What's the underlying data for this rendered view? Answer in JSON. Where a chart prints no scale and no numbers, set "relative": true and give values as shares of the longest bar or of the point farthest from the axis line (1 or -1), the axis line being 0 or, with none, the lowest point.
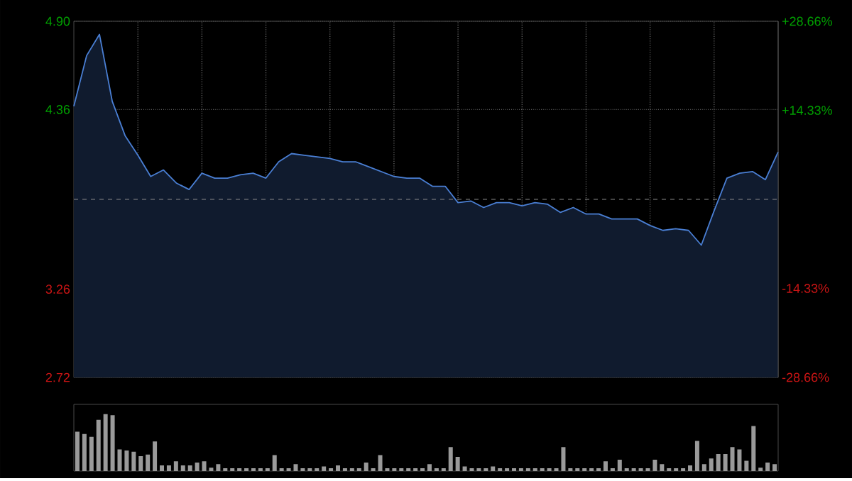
{
  "chart_data": [
    {
      "type": "area",
      "color": "#4a7fd4",
      "categories": [
        null,
        null,
        null,
        null,
        null,
        null,
        null,
        null,
        null,
        null,
        null,
        null,
        null,
        null,
        null,
        null,
        null,
        null,
        null,
        null,
        null,
        null,
        null,
        null,
        null,
        null,
        null,
        null,
        null,
        null,
        null,
        null,
        null,
        null,
        null,
        null,
        null,
        null,
        null,
        null,
        null,
        null,
        null,
        null,
        null,
        null,
        null,
        null,
        null,
        null,
        null,
        null,
        null,
        null,
        null,
        null
      ],
      "values": [
        4.38,
        4.69,
        4.82,
        4.41,
        4.2,
        4.08,
        3.95,
        3.99,
        3.91,
        3.87,
        3.97,
        3.94,
        3.94,
        3.96,
        3.97,
        3.94,
        4.04,
        4.09,
        4.08,
        4.07,
        4.06,
        4.04,
        4.04,
        4.01,
        3.98,
        3.95,
        3.94,
        3.94,
        3.89,
        3.89,
        3.79,
        3.8,
        3.76,
        3.79,
        3.79,
        3.77,
        3.79,
        3.78,
        3.73,
        3.76,
        3.72,
        3.72,
        3.69,
        3.69,
        3.69,
        3.65,
        3.62,
        3.63,
        3.62,
        3.53,
        3.74,
        3.94,
        3.97,
        3.98,
        3.93,
        4.1
      ],
      "ylim": [
        2.72,
        4.9
      ],
      "yticks": [
        {
          "value": 2.72,
          "label": "2.72"
        },
        {
          "value": 3.26,
          "label": "3.26"
        },
        {
          "value": 4.36,
          "label": "4.36"
        },
        {
          "value": 4.9,
          "label": "4.90"
        }
      ],
      "y2lim": [
        -28.66,
        28.66
      ],
      "y2ticks": [
        {
          "value": -28.66,
          "label": "-28.66%"
        },
        {
          "value": -14.33,
          "label": "-14.33%"
        },
        {
          "value": 14.33,
          "label": "+14.33%"
        },
        {
          "value": 28.66,
          "label": "+28.66%"
        }
      ],
      "ref_lines": [
        {
          "axis": "y",
          "value": 3.81,
          "line_style": "dashed",
          "color": "#8a8a8a"
        }
      ],
      "grid": true
    },
    {
      "type": "bar",
      "relative": true,
      "color": "#9a9a9a",
      "categories": [
        null,
        null,
        null,
        null,
        null,
        null,
        null,
        null,
        null,
        null,
        null,
        null,
        null,
        null,
        null,
        null,
        null,
        null,
        null,
        null,
        null,
        null,
        null,
        null,
        null,
        null,
        null,
        null,
        null,
        null,
        null,
        null,
        null,
        null,
        null,
        null,
        null,
        null,
        null,
        null,
        null,
        null,
        null,
        null,
        null,
        null,
        null,
        null,
        null,
        null,
        null,
        null,
        null,
        null,
        null,
        null,
        null,
        null,
        null,
        null,
        null,
        null,
        null,
        null,
        null,
        null,
        null,
        null,
        null,
        null,
        null,
        null,
        null,
        null,
        null,
        null,
        null,
        null,
        null,
        null,
        null,
        null,
        null,
        null,
        null,
        null,
        null,
        null,
        null,
        null,
        null,
        null,
        null,
        null,
        null,
        null,
        null,
        null,
        null,
        null
      ],
      "values": [
        0.69,
        0.65,
        0.6,
        0.9,
        1.0,
        0.98,
        0.38,
        0.36,
        0.34,
        0.26,
        0.29,
        0.52,
        0.1,
        0.1,
        0.17,
        0.1,
        0.1,
        0.15,
        0.17,
        0.06,
        0.12,
        0.05,
        0.05,
        0.05,
        0.05,
        0.05,
        0.05,
        0.05,
        0.28,
        0.05,
        0.05,
        0.12,
        0.05,
        0.05,
        0.05,
        0.08,
        0.05,
        0.1,
        0.05,
        0.05,
        0.05,
        0.15,
        0.05,
        0.28,
        0.05,
        0.05,
        0.05,
        0.05,
        0.05,
        0.05,
        0.12,
        0.05,
        0.05,
        0.42,
        0.25,
        0.08,
        0.05,
        0.05,
        0.05,
        0.08,
        0.05,
        0.05,
        0.05,
        0.05,
        0.05,
        0.05,
        0.05,
        0.05,
        0.05,
        0.42,
        0.05,
        0.05,
        0.05,
        0.05,
        0.05,
        0.17,
        0.05,
        0.2,
        0.05,
        0.05,
        0.05,
        0.05,
        0.2,
        0.12,
        0.05,
        0.05,
        0.05,
        0.1,
        0.53,
        0.12,
        0.22,
        0.3,
        0.3,
        0.42,
        0.38,
        0.18,
        0.79,
        0.06,
        0.15,
        0.12
      ]
    }
  ]
}
